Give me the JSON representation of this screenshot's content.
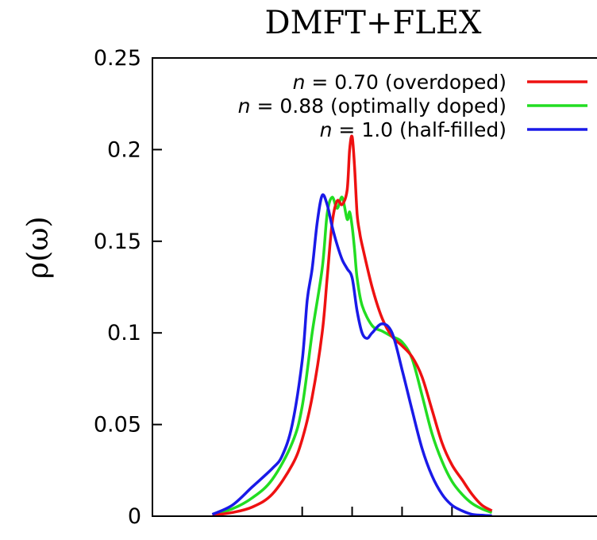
{
  "chart_data": {
    "type": "line",
    "title": "DMFT+FLEX",
    "ylabel": "ρ(ω)",
    "xlabel": "",
    "xlim": [
      -4,
      5
    ],
    "ylim": [
      0,
      0.25
    ],
    "yticks": [
      {
        "value": 0,
        "label": "0"
      },
      {
        "value": 0.05,
        "label": "0.05"
      },
      {
        "value": 0.1,
        "label": "0.1"
      },
      {
        "value": 0.15,
        "label": "0.15"
      },
      {
        "value": 0.2,
        "label": "0.2"
      },
      {
        "value": 0.25,
        "label": "0.25"
      }
    ],
    "xticks": [
      -1,
      0,
      1,
      2
    ],
    "legend_position": "top-right",
    "series": [
      {
        "name": "n = 0.70 (overdoped)",
        "name_var": "n",
        "name_rest": " = 0.70 (overdoped)",
        "color": "#ee1111",
        "x": [
          -2.8,
          -2.4,
          -2.0,
          -1.6,
          -1.2,
          -1.0,
          -0.8,
          -0.6,
          -0.5,
          -0.4,
          -0.3,
          -0.2,
          -0.1,
          -0.05,
          0.0,
          0.05,
          0.1,
          0.15,
          0.2,
          0.4,
          0.6,
          0.8,
          1.0,
          1.2,
          1.4,
          1.6,
          1.8,
          2.0,
          2.2,
          2.4,
          2.6,
          2.8
        ],
        "y": [
          0.0005,
          0.002,
          0.005,
          0.012,
          0.028,
          0.042,
          0.065,
          0.1,
          0.13,
          0.16,
          0.172,
          0.17,
          0.178,
          0.2,
          0.207,
          0.19,
          0.165,
          0.155,
          0.148,
          0.125,
          0.108,
          0.098,
          0.093,
          0.087,
          0.076,
          0.058,
          0.04,
          0.028,
          0.02,
          0.012,
          0.006,
          0.003
        ]
      },
      {
        "name": "n = 0.88 (optimally doped)",
        "name_var": "n",
        "name_rest": " = 0.88 (optimally doped)",
        "color": "#22dd22",
        "x": [
          -2.8,
          -2.4,
          -2.0,
          -1.6,
          -1.2,
          -1.0,
          -0.8,
          -0.6,
          -0.5,
          -0.4,
          -0.3,
          -0.2,
          -0.1,
          -0.05,
          0.0,
          0.05,
          0.1,
          0.2,
          0.4,
          0.6,
          0.8,
          1.0,
          1.2,
          1.4,
          1.6,
          1.8,
          2.0,
          2.2,
          2.4,
          2.6,
          2.8
        ],
        "y": [
          0.001,
          0.004,
          0.01,
          0.02,
          0.04,
          0.06,
          0.1,
          0.135,
          0.165,
          0.174,
          0.168,
          0.174,
          0.162,
          0.166,
          0.158,
          0.145,
          0.13,
          0.115,
          0.104,
          0.101,
          0.098,
          0.095,
          0.086,
          0.066,
          0.045,
          0.03,
          0.019,
          0.012,
          0.007,
          0.004,
          0.002
        ]
      },
      {
        "name": "n = 1.0 (half-filled)",
        "name_var": "n",
        "name_rest": " = 1.0 (half-filled)",
        "color": "#1a1ae8",
        "x": [
          -2.8,
          -2.4,
          -2.0,
          -1.6,
          -1.4,
          -1.2,
          -1.0,
          -0.9,
          -0.8,
          -0.7,
          -0.6,
          -0.5,
          -0.4,
          -0.3,
          -0.2,
          -0.1,
          0.0,
          0.1,
          0.2,
          0.3,
          0.4,
          0.6,
          0.8,
          1.0,
          1.2,
          1.4,
          1.6,
          1.8,
          2.0,
          2.2,
          2.4,
          2.6,
          2.8
        ],
        "y": [
          0.001,
          0.006,
          0.016,
          0.026,
          0.033,
          0.05,
          0.085,
          0.118,
          0.135,
          0.16,
          0.175,
          0.17,
          0.158,
          0.148,
          0.14,
          0.135,
          0.13,
          0.112,
          0.1,
          0.097,
          0.1,
          0.105,
          0.1,
          0.08,
          0.058,
          0.037,
          0.022,
          0.012,
          0.006,
          0.003,
          0.001,
          0.0005,
          0.0002
        ]
      }
    ]
  }
}
